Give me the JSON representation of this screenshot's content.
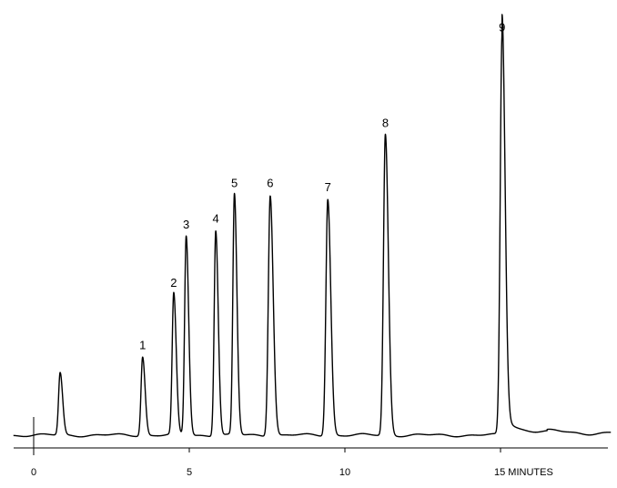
{
  "chart_data": {
    "type": "line",
    "title": "",
    "xlabel": "",
    "ylabel": "",
    "x_unit_label": "MINUTES",
    "xlim": [
      -0.7,
      18.6
    ],
    "ylim": [
      0,
      100
    ],
    "grid": false,
    "x_ticks": [
      {
        "value": 0,
        "label": "0"
      },
      {
        "value": 5,
        "label": "5"
      },
      {
        "value": 10,
        "label": "10"
      },
      {
        "value": 15,
        "label": "15 MINUTES"
      }
    ],
    "baseline": 3.5,
    "series": [
      {
        "peaks": [
          {
            "label": "",
            "rt": 0.85,
            "height": 18.5,
            "width": 0.05
          },
          {
            "label": "1",
            "rt": 3.5,
            "height": 22.5,
            "width": 0.05
          },
          {
            "label": "2",
            "rt": 4.5,
            "height": 37.5,
            "width": 0.05
          },
          {
            "label": "3",
            "rt": 4.9,
            "height": 51.5,
            "width": 0.05
          },
          {
            "label": "4",
            "rt": 5.85,
            "height": 53.0,
            "width": 0.05
          },
          {
            "label": "5",
            "rt": 6.45,
            "height": 61.5,
            "width": 0.05
          },
          {
            "label": "6",
            "rt": 7.6,
            "height": 61.5,
            "width": 0.06
          },
          {
            "label": "7",
            "rt": 9.45,
            "height": 60.5,
            "width": 0.06
          },
          {
            "label": "8",
            "rt": 11.3,
            "height": 76.0,
            "width": 0.06
          },
          {
            "label": "9",
            "rt": 15.05,
            "height": 99.0,
            "width": 0.06
          }
        ]
      }
    ]
  }
}
